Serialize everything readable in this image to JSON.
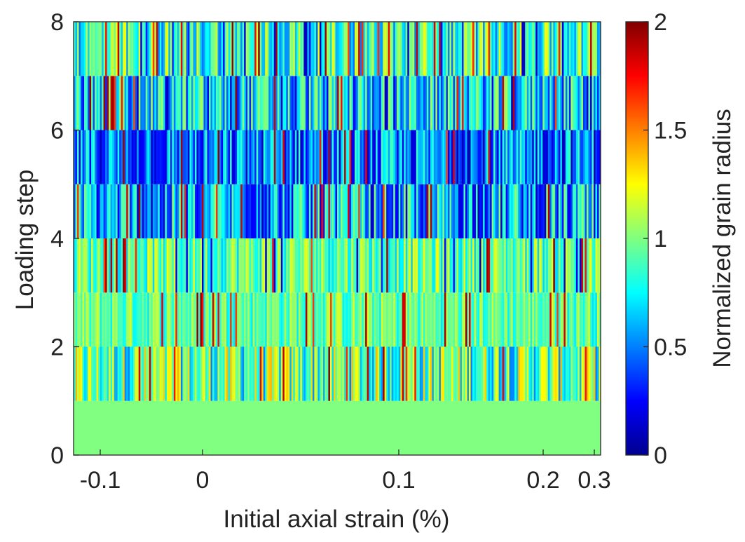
{
  "chart_data": {
    "type": "heatmap",
    "title": "",
    "xlabel": "Initial axial strain (%)",
    "ylabel": "Loading step",
    "colorbar_label": "Normalized grain radius",
    "colormap": "jet",
    "x_axis": {
      "note": "non-uniform strain axis",
      "ticks": [
        {
          "value": -0.1,
          "label": "-0.1"
        },
        {
          "value": 0,
          "label": "0"
        },
        {
          "value": 0.1,
          "label": "0.1"
        },
        {
          "value": 0.2,
          "label": "0.2"
        },
        {
          "value": 0.3,
          "label": "0.3"
        }
      ]
    },
    "y_axis": {
      "ylim": [
        0,
        8
      ],
      "ticks": [
        {
          "value": 0,
          "label": "0"
        },
        {
          "value": 2,
          "label": "2"
        },
        {
          "value": 4,
          "label": "4"
        },
        {
          "value": 6,
          "label": "6"
        },
        {
          "value": 8,
          "label": "8"
        }
      ]
    },
    "colorbar": {
      "clim": [
        0,
        2
      ],
      "ticks": [
        {
          "value": 0,
          "label": "0"
        },
        {
          "value": 0.5,
          "label": "0.5"
        },
        {
          "value": 1,
          "label": "1"
        },
        {
          "value": 1.5,
          "label": "1.5"
        },
        {
          "value": 2,
          "label": "2"
        }
      ]
    },
    "grain_count": 300,
    "loading_steps": [
      {
        "step_range": [
          0,
          1
        ],
        "typical_value": 1.0,
        "spread": 0.0
      },
      {
        "step_range": [
          1,
          2
        ],
        "typical_value": 0.95,
        "spread": 0.45
      },
      {
        "step_range": [
          2,
          3
        ],
        "typical_value": 0.95,
        "spread": 0.25
      },
      {
        "step_range": [
          3,
          4
        ],
        "typical_value": 0.95,
        "spread": 0.3
      },
      {
        "step_range": [
          4,
          5
        ],
        "typical_value": 0.6,
        "spread": 0.45
      },
      {
        "step_range": [
          5,
          6
        ],
        "typical_value": 0.5,
        "spread": 0.4
      },
      {
        "step_range": [
          6,
          7
        ],
        "typical_value": 0.7,
        "spread": 0.4
      },
      {
        "step_range": [
          7,
          8
        ],
        "typical_value": 0.85,
        "spread": 0.4
      }
    ],
    "grid": false
  }
}
